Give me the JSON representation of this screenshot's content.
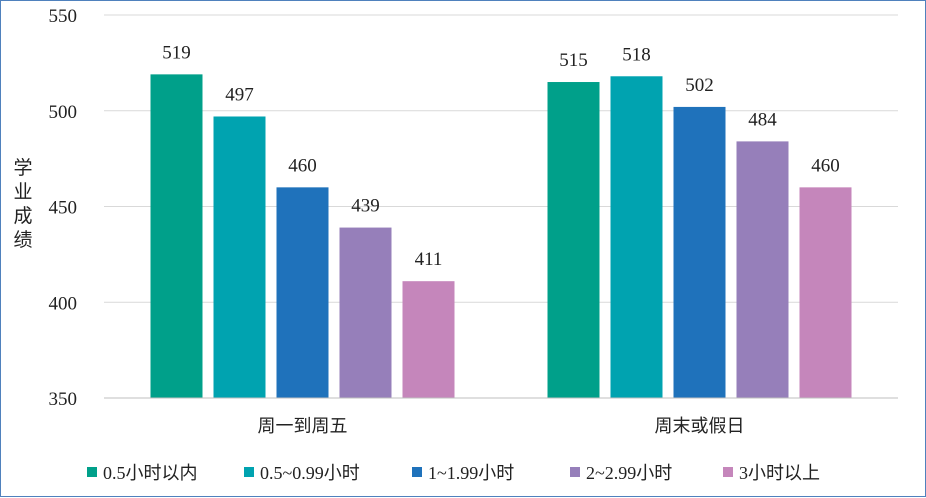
{
  "chart_data": {
    "type": "bar",
    "ylabel": "学业成绩",
    "ylim": [
      350,
      550
    ],
    "yticks": [
      350,
      400,
      450,
      500,
      550
    ],
    "grid": true,
    "legend_position": "bottom",
    "categories": [
      "周一到周五",
      "周末或假日"
    ],
    "series": [
      {
        "name": "0.5小时以内",
        "color": "#00a08a",
        "values": [
          519,
          515
        ]
      },
      {
        "name": "0.5~0.99小时",
        "color": "#00a3b0",
        "values": [
          497,
          518
        ]
      },
      {
        "name": "1~1.99小时",
        "color": "#1f72bb",
        "values": [
          460,
          502
        ]
      },
      {
        "name": "2~2.99小时",
        "color": "#967fba",
        "values": [
          439,
          484
        ]
      },
      {
        "name": "3小时以上",
        "color": "#c586bb",
        "values": [
          411,
          460
        ]
      }
    ]
  }
}
